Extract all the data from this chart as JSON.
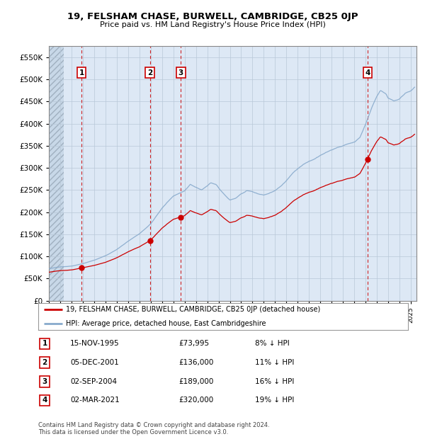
{
  "title": "19, FELSHAM CHASE, BURWELL, CAMBRIDGE, CB25 0JP",
  "subtitle": "Price paid vs. HM Land Registry's House Price Index (HPI)",
  "legend_line1": "19, FELSHAM CHASE, BURWELL, CAMBRIDGE, CB25 0JP (detached house)",
  "legend_line2": "HPI: Average price, detached house, East Cambridgeshire",
  "footer": "Contains HM Land Registry data © Crown copyright and database right 2024.\nThis data is licensed under the Open Government Licence v3.0.",
  "sales": [
    {
      "label": "1",
      "date": "1995-11-15",
      "price": 73995,
      "x_year": 1995.88
    },
    {
      "label": "2",
      "date": "2001-12-05",
      "price": 136000,
      "x_year": 2001.93
    },
    {
      "label": "3",
      "date": "2004-09-02",
      "price": 189000,
      "x_year": 2004.67
    },
    {
      "label": "4",
      "date": "2021-03-02",
      "price": 320000,
      "x_year": 2021.17
    }
  ],
  "sale_dates_display": [
    "15-NOV-1995",
    "05-DEC-2001",
    "02-SEP-2004",
    "02-MAR-2021"
  ],
  "sale_prices_display": [
    "£73,995",
    "£136,000",
    "£189,000",
    "£320,000"
  ],
  "sale_pcts_display": [
    "8% ↓ HPI",
    "11% ↓ HPI",
    "16% ↓ HPI",
    "19% ↓ HPI"
  ],
  "ylim": [
    0,
    575000
  ],
  "yticks": [
    0,
    50000,
    100000,
    150000,
    200000,
    250000,
    300000,
    350000,
    400000,
    450000,
    500000,
    550000
  ],
  "ytick_labels": [
    "£0",
    "£50K",
    "£100K",
    "£150K",
    "£200K",
    "£250K",
    "£300K",
    "£350K",
    "£400K",
    "£450K",
    "£500K",
    "£550K"
  ],
  "xlim_start": 1993.0,
  "xlim_end": 2025.5,
  "red_color": "#cc0000",
  "blue_color": "#88aacc",
  "plot_area_color": "#dde8f5",
  "hatch_end": 1994.3
}
